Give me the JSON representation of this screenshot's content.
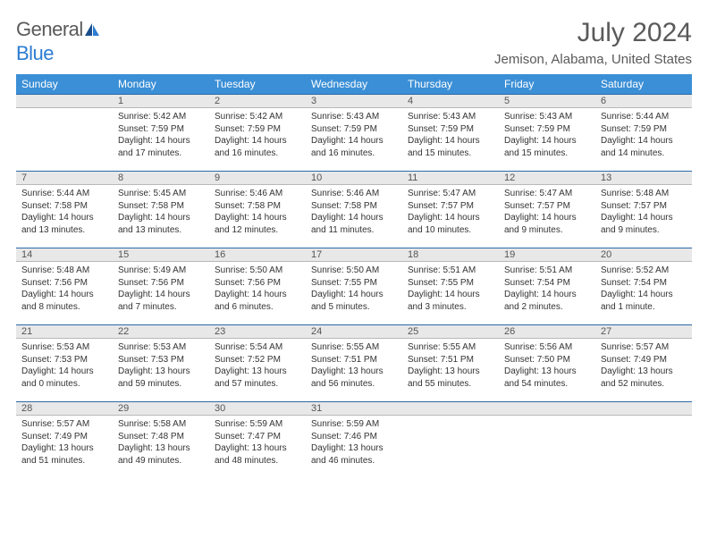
{
  "logo": {
    "text1": "General",
    "text2": "Blue"
  },
  "title": "July 2024",
  "location": "Jemison, Alabama, United States",
  "colors": {
    "header_bg": "#3b8fd6",
    "header_text": "#ffffff",
    "daynum_bg": "#e8e8e8",
    "daynum_border_top": "#2b6aa8",
    "logo_gray": "#5a5a5a",
    "logo_blue": "#2b7cd3",
    "body_text": "#333333"
  },
  "weekdays": [
    "Sunday",
    "Monday",
    "Tuesday",
    "Wednesday",
    "Thursday",
    "Friday",
    "Saturday"
  ],
  "weeks": [
    [
      {
        "n": "",
        "sr": "",
        "ss": "",
        "dl": ""
      },
      {
        "n": "1",
        "sr": "Sunrise: 5:42 AM",
        "ss": "Sunset: 7:59 PM",
        "dl": "Daylight: 14 hours and 17 minutes."
      },
      {
        "n": "2",
        "sr": "Sunrise: 5:42 AM",
        "ss": "Sunset: 7:59 PM",
        "dl": "Daylight: 14 hours and 16 minutes."
      },
      {
        "n": "3",
        "sr": "Sunrise: 5:43 AM",
        "ss": "Sunset: 7:59 PM",
        "dl": "Daylight: 14 hours and 16 minutes."
      },
      {
        "n": "4",
        "sr": "Sunrise: 5:43 AM",
        "ss": "Sunset: 7:59 PM",
        "dl": "Daylight: 14 hours and 15 minutes."
      },
      {
        "n": "5",
        "sr": "Sunrise: 5:43 AM",
        "ss": "Sunset: 7:59 PM",
        "dl": "Daylight: 14 hours and 15 minutes."
      },
      {
        "n": "6",
        "sr": "Sunrise: 5:44 AM",
        "ss": "Sunset: 7:59 PM",
        "dl": "Daylight: 14 hours and 14 minutes."
      }
    ],
    [
      {
        "n": "7",
        "sr": "Sunrise: 5:44 AM",
        "ss": "Sunset: 7:58 PM",
        "dl": "Daylight: 14 hours and 13 minutes."
      },
      {
        "n": "8",
        "sr": "Sunrise: 5:45 AM",
        "ss": "Sunset: 7:58 PM",
        "dl": "Daylight: 14 hours and 13 minutes."
      },
      {
        "n": "9",
        "sr": "Sunrise: 5:46 AM",
        "ss": "Sunset: 7:58 PM",
        "dl": "Daylight: 14 hours and 12 minutes."
      },
      {
        "n": "10",
        "sr": "Sunrise: 5:46 AM",
        "ss": "Sunset: 7:58 PM",
        "dl": "Daylight: 14 hours and 11 minutes."
      },
      {
        "n": "11",
        "sr": "Sunrise: 5:47 AM",
        "ss": "Sunset: 7:57 PM",
        "dl": "Daylight: 14 hours and 10 minutes."
      },
      {
        "n": "12",
        "sr": "Sunrise: 5:47 AM",
        "ss": "Sunset: 7:57 PM",
        "dl": "Daylight: 14 hours and 9 minutes."
      },
      {
        "n": "13",
        "sr": "Sunrise: 5:48 AM",
        "ss": "Sunset: 7:57 PM",
        "dl": "Daylight: 14 hours and 9 minutes."
      }
    ],
    [
      {
        "n": "14",
        "sr": "Sunrise: 5:48 AM",
        "ss": "Sunset: 7:56 PM",
        "dl": "Daylight: 14 hours and 8 minutes."
      },
      {
        "n": "15",
        "sr": "Sunrise: 5:49 AM",
        "ss": "Sunset: 7:56 PM",
        "dl": "Daylight: 14 hours and 7 minutes."
      },
      {
        "n": "16",
        "sr": "Sunrise: 5:50 AM",
        "ss": "Sunset: 7:56 PM",
        "dl": "Daylight: 14 hours and 6 minutes."
      },
      {
        "n": "17",
        "sr": "Sunrise: 5:50 AM",
        "ss": "Sunset: 7:55 PM",
        "dl": "Daylight: 14 hours and 5 minutes."
      },
      {
        "n": "18",
        "sr": "Sunrise: 5:51 AM",
        "ss": "Sunset: 7:55 PM",
        "dl": "Daylight: 14 hours and 3 minutes."
      },
      {
        "n": "19",
        "sr": "Sunrise: 5:51 AM",
        "ss": "Sunset: 7:54 PM",
        "dl": "Daylight: 14 hours and 2 minutes."
      },
      {
        "n": "20",
        "sr": "Sunrise: 5:52 AM",
        "ss": "Sunset: 7:54 PM",
        "dl": "Daylight: 14 hours and 1 minute."
      }
    ],
    [
      {
        "n": "21",
        "sr": "Sunrise: 5:53 AM",
        "ss": "Sunset: 7:53 PM",
        "dl": "Daylight: 14 hours and 0 minutes."
      },
      {
        "n": "22",
        "sr": "Sunrise: 5:53 AM",
        "ss": "Sunset: 7:53 PM",
        "dl": "Daylight: 13 hours and 59 minutes."
      },
      {
        "n": "23",
        "sr": "Sunrise: 5:54 AM",
        "ss": "Sunset: 7:52 PM",
        "dl": "Daylight: 13 hours and 57 minutes."
      },
      {
        "n": "24",
        "sr": "Sunrise: 5:55 AM",
        "ss": "Sunset: 7:51 PM",
        "dl": "Daylight: 13 hours and 56 minutes."
      },
      {
        "n": "25",
        "sr": "Sunrise: 5:55 AM",
        "ss": "Sunset: 7:51 PM",
        "dl": "Daylight: 13 hours and 55 minutes."
      },
      {
        "n": "26",
        "sr": "Sunrise: 5:56 AM",
        "ss": "Sunset: 7:50 PM",
        "dl": "Daylight: 13 hours and 54 minutes."
      },
      {
        "n": "27",
        "sr": "Sunrise: 5:57 AM",
        "ss": "Sunset: 7:49 PM",
        "dl": "Daylight: 13 hours and 52 minutes."
      }
    ],
    [
      {
        "n": "28",
        "sr": "Sunrise: 5:57 AM",
        "ss": "Sunset: 7:49 PM",
        "dl": "Daylight: 13 hours and 51 minutes."
      },
      {
        "n": "29",
        "sr": "Sunrise: 5:58 AM",
        "ss": "Sunset: 7:48 PM",
        "dl": "Daylight: 13 hours and 49 minutes."
      },
      {
        "n": "30",
        "sr": "Sunrise: 5:59 AM",
        "ss": "Sunset: 7:47 PM",
        "dl": "Daylight: 13 hours and 48 minutes."
      },
      {
        "n": "31",
        "sr": "Sunrise: 5:59 AM",
        "ss": "Sunset: 7:46 PM",
        "dl": "Daylight: 13 hours and 46 minutes."
      },
      {
        "n": "",
        "sr": "",
        "ss": "",
        "dl": ""
      },
      {
        "n": "",
        "sr": "",
        "ss": "",
        "dl": ""
      },
      {
        "n": "",
        "sr": "",
        "ss": "",
        "dl": ""
      }
    ]
  ]
}
